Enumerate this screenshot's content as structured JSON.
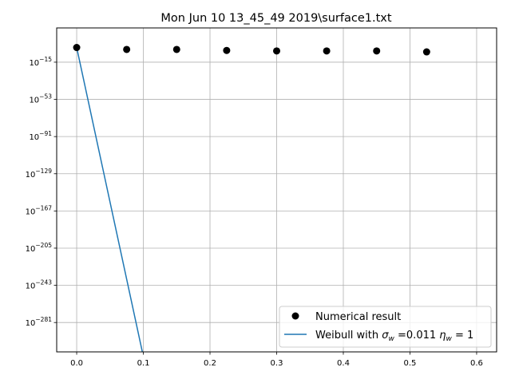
{
  "chart_data": {
    "type": "scatter",
    "title": "Mon Jun 10 13_45_49 2019\\surface1.txt",
    "xlabel": "",
    "ylabel": "",
    "xlim": [
      -0.03,
      0.63
    ],
    "ylim_exponent": [
      -311,
      20
    ],
    "y_scale": "log",
    "grid": true,
    "legend_position": "lower-right",
    "x_ticks": [
      "0.0",
      "0.1",
      "0.2",
      "0.3",
      "0.4",
      "0.5",
      "0.6"
    ],
    "x_tick_values": [
      0.0,
      0.1,
      0.2,
      0.3,
      0.4,
      0.5,
      0.6
    ],
    "y_tick_exponents": [
      "−15",
      "−53",
      "−91",
      "−129",
      "−167",
      "−205",
      "−243",
      "−281"
    ],
    "y_tick_values": [
      -15,
      -53,
      -91,
      -129,
      -167,
      -205,
      -243,
      -281
    ],
    "series": [
      {
        "name": "Numerical result",
        "kind": "scatter",
        "color": "#000000",
        "x": [
          0.0,
          0.075,
          0.15,
          0.225,
          0.3,
          0.375,
          0.45,
          0.525
        ],
        "y_exponent": [
          0.0,
          -2.0,
          -2.0,
          -3.0,
          -3.5,
          -3.5,
          -3.5,
          -4.5
        ]
      },
      {
        "name": "Weibull with σ_w =0.011 η_w = 1",
        "kind": "line",
        "color": "#1f77b4",
        "x": [
          0.0,
          0.0985
        ],
        "y_exponent": [
          0.0,
          -311
        ]
      }
    ],
    "legend": {
      "entry_1": "Numerical result",
      "entry_2_prefix": "Weibull with ",
      "sigma": "σ",
      "sigma_sub": "w",
      "entry_2_mid": " =0.011 ",
      "eta": "η",
      "eta_sub": "w",
      "entry_2_suffix": " = 1"
    }
  }
}
